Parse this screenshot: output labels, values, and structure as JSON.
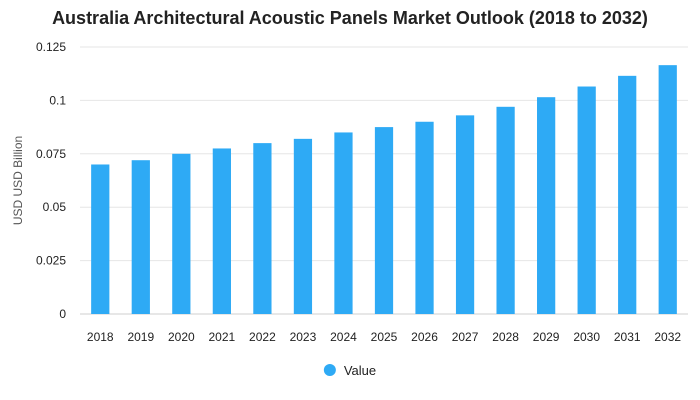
{
  "chart_data": {
    "type": "bar",
    "title": "Australia Architectural Acoustic Panels Market Outlook (2018 to 2032)",
    "xlabel": "",
    "ylabel": "USD USD Billion",
    "categories": [
      "2018",
      "2019",
      "2020",
      "2021",
      "2022",
      "2023",
      "2024",
      "2025",
      "2026",
      "2027",
      "2028",
      "2029",
      "2030",
      "2031",
      "2032"
    ],
    "series": [
      {
        "name": "Value",
        "color": "#2eaaf5",
        "values": [
          0.07,
          0.072,
          0.075,
          0.0775,
          0.08,
          0.082,
          0.085,
          0.0875,
          0.09,
          0.093,
          0.097,
          0.1015,
          0.1065,
          0.1115,
          0.1165
        ]
      }
    ],
    "ylim": [
      0,
      0.125
    ],
    "yticks": [
      0,
      0.025,
      0.05,
      0.075,
      0.1,
      0.125
    ],
    "ytick_labels": [
      "0",
      "0.025",
      "0.05",
      "0.075",
      "0.1",
      "0.125"
    ],
    "grid": true,
    "legend_position": "bottom-center"
  }
}
